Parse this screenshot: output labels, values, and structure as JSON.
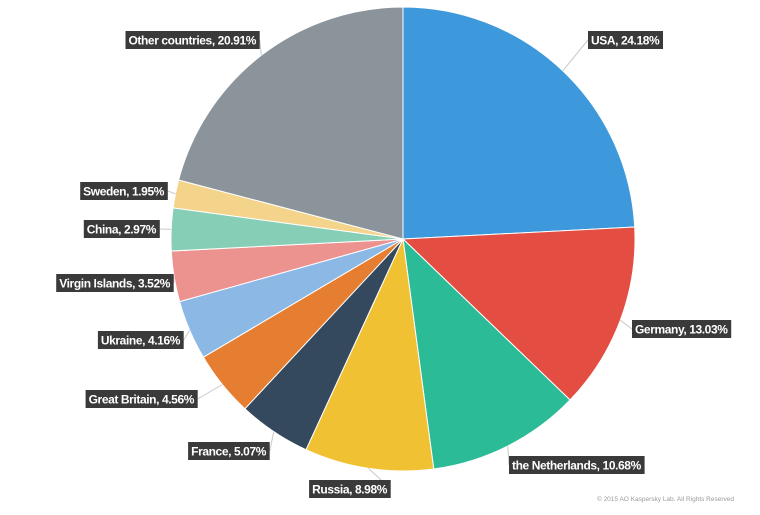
{
  "chart_data": {
    "type": "pie",
    "title": "",
    "unit": "%",
    "slices": [
      {
        "label": "USA, 24.18%",
        "category": "USA",
        "value": 24.18,
        "color": "#3d99db"
      },
      {
        "label": "Germany, 13.03%",
        "category": "Germany",
        "value": 13.03,
        "color": "#e44d42"
      },
      {
        "label": "the Netherlands, 10.68%",
        "category": "the Netherlands",
        "value": 10.68,
        "color": "#2bbb97"
      },
      {
        "label": "Russia, 8.98%",
        "category": "Russia",
        "value": 8.98,
        "color": "#f0c233"
      },
      {
        "label": "France, 5.07%",
        "category": "France",
        "value": 5.07,
        "color": "#34495e"
      },
      {
        "label": "Great Britain, 4.56%",
        "category": "Great Britain",
        "value": 4.56,
        "color": "#e67e31"
      },
      {
        "label": "Ukraine, 4.16%",
        "category": "Ukraine",
        "value": 4.16,
        "color": "#8cb8e6"
      },
      {
        "label": "Virgin Islands, 3.52%",
        "category": "Virgin Islands",
        "value": 3.52,
        "color": "#ec9390"
      },
      {
        "label": "China, 2.97%",
        "category": "China",
        "value": 2.97,
        "color": "#86ceb6"
      },
      {
        "label": "Sweden, 1.95%",
        "category": "Sweden",
        "value": 1.95,
        "color": "#f3d48a"
      },
      {
        "label": "Other  countries, 20.91%",
        "category": "Other countries",
        "value": 20.91,
        "color": "#8b939b"
      }
    ],
    "label_style": {
      "box_color": "#3a3a3a",
      "text_color": "#ffffff"
    }
  },
  "footer": {
    "copyright": "© 2015 AO Kaspersky Lab. All Rights Reserved"
  }
}
